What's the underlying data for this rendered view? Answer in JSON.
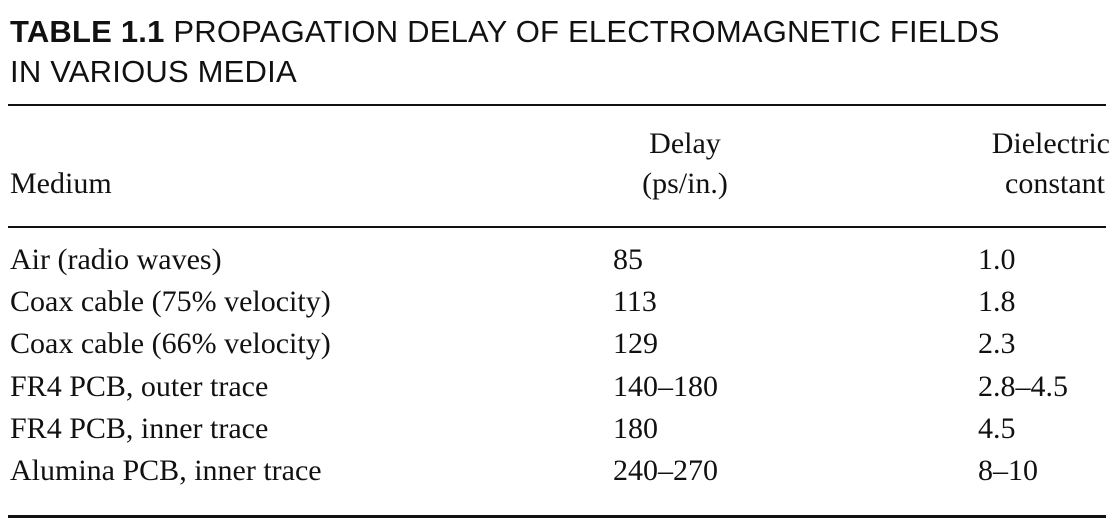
{
  "caption": {
    "label": "TABLE 1.1",
    "title_line1": "PROPAGATION DELAY OF ELECTROMAGNETIC FIELDS",
    "title_line2": "IN VARIOUS MEDIA"
  },
  "table": {
    "headers": {
      "medium": "Medium",
      "delay_line1": "Delay",
      "delay_line2": "(ps/in.)",
      "dielectric_line1": "Dielectric",
      "dielectric_line2": "constant"
    },
    "rows": [
      {
        "medium": "Air (radio waves)",
        "delay": "85",
        "dielectric": "1.0"
      },
      {
        "medium": "Coax cable (75% velocity)",
        "delay": "113",
        "dielectric": "1.8"
      },
      {
        "medium": "Coax cable (66% velocity)",
        "delay": "129",
        "dielectric": "2.3"
      },
      {
        "medium": "FR4 PCB, outer trace",
        "delay": "140–180",
        "dielectric": "2.8–4.5"
      },
      {
        "medium": "FR4 PCB, inner trace",
        "delay": "180",
        "dielectric": "4.5"
      },
      {
        "medium": "Alumina PCB, inner trace",
        "delay": "240–270",
        "dielectric": "8–10"
      }
    ]
  }
}
